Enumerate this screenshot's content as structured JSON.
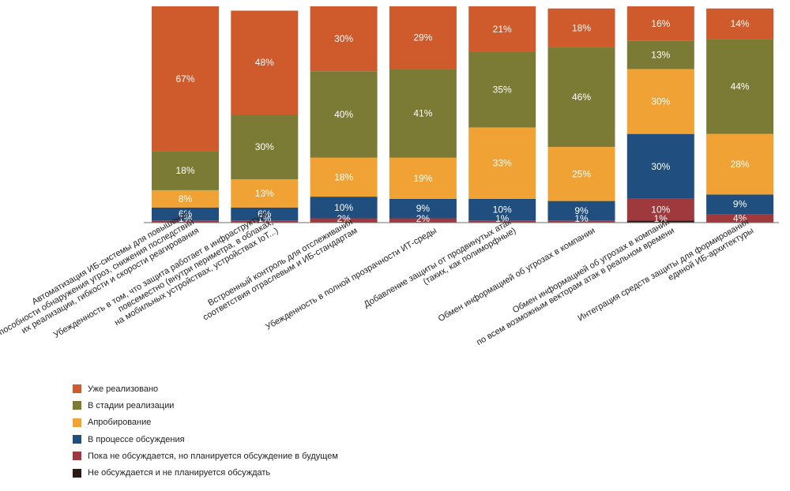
{
  "chart_data": {
    "type": "bar",
    "stacked": true,
    "percent": true,
    "ylim": [
      0,
      100
    ],
    "grid": false,
    "legend_placement": "bottom-left",
    "categories": [
      "Автоматизация ИБ-системы для повышения способности обнаружения угроз, снижения последствий их реализации, гибкости и скорости реагирования",
      "Убежденность в том, что защита работает в инфраструктуре повсеместно (внутри периметра, в облаках, на мобильных устройствах, устройствах IoT...)",
      "Встроенный контроль для отслеживания соответствия отраслевым и ИБ-стандартам",
      "Убежденность в полной прозрачности ИТ-среды",
      "Добавление защиты от продвинутых атак (таких, как полиморфные)",
      "Обмен информацией об угрозах в компании",
      "Обмен информацией об угрозах в компании по всем возможным векторам атак в реальном времени",
      "Интеграция средств защиты для формирования единой ИБ-архитектуры"
    ],
    "category_lines": [
      [
        "Автоматизация ИБ-системы для повышения",
        "способности обнаружения угроз, снижения последствий",
        "их реализации, гибкости и скорости реагирования"
      ],
      [
        "Убежденность в том, что защита работает в инфраструктуре",
        "повсеместно (внутри периметра, в облаках,",
        "на мобильных устройствах, устройствах IoT...)"
      ],
      [
        "Встроенный контроль для отслеживания",
        "соответствия отраслевым и ИБ-стандартам"
      ],
      [
        "Убежденность в полной прозрачности ИТ-среды"
      ],
      [
        "Добавление защиты от продвинутых атак",
        "(таких, как полиморфные)"
      ],
      [
        "Обмен информацией об угрозах в компании"
      ],
      [
        "Обмен информацией об угрозах в компании",
        "по всем возможным векторам атак в реальном времени"
      ],
      [
        "Интеграция средств защиты для формирования",
        "единой ИБ-архитектуры"
      ]
    ],
    "series": [
      {
        "name": "Не обсуждается и не планируется обсуждать",
        "color": "#2b1a14",
        "values": [
          0,
          0,
          0,
          0,
          0,
          0,
          1,
          0
        ],
        "labels": [
          "",
          "",
          "",
          "",
          "",
          "",
          "1%",
          ""
        ]
      },
      {
        "name": "Пока не обсуждается, но планируется обсуждение в будущем",
        "color": "#9e3a3e",
        "values": [
          1,
          1,
          2,
          2,
          1,
          1,
          10,
          4
        ],
        "labels": [
          "1%",
          "1%",
          "2%",
          "2%",
          "1%",
          "1%",
          "10%",
          "4%"
        ]
      },
      {
        "name": "В процессе обсуждения",
        "color": "#1f4e7f",
        "values": [
          6,
          6,
          10,
          9,
          10,
          9,
          30,
          9
        ],
        "labels": [
          "6%",
          "6%",
          "10%",
          "9%",
          "10%",
          "9%",
          "30%",
          "9%"
        ]
      },
      {
        "name": "Апробирование",
        "color": "#f0a234",
        "values": [
          8,
          13,
          18,
          19,
          33,
          25,
          30,
          28
        ],
        "labels": [
          "8%",
          "13%",
          "18%",
          "19%",
          "33%",
          "25%",
          "30%",
          "28%"
        ]
      },
      {
        "name": "В стадии реализации",
        "color": "#7b7b36",
        "values": [
          18,
          30,
          40,
          41,
          35,
          46,
          13,
          44
        ],
        "labels": [
          "18%",
          "30%",
          "40%",
          "41%",
          "35%",
          "46%",
          "13%",
          "44%"
        ]
      },
      {
        "name": "Уже реализовано",
        "color": "#cf5a2c",
        "values": [
          67,
          48,
          30,
          29,
          21,
          18,
          16,
          14
        ],
        "labels": [
          "67%",
          "48%",
          "30%",
          "29%",
          "21%",
          "18%",
          "16%",
          "14%"
        ]
      }
    ],
    "legend_order": [
      "Уже реализовано",
      "В стадии реализации",
      "Апробирование",
      "В процессе обсуждения",
      "Пока не обсуждается, но планируется обсуждение в будущем",
      "Не обсуждается и не планируется обсуждать"
    ]
  }
}
